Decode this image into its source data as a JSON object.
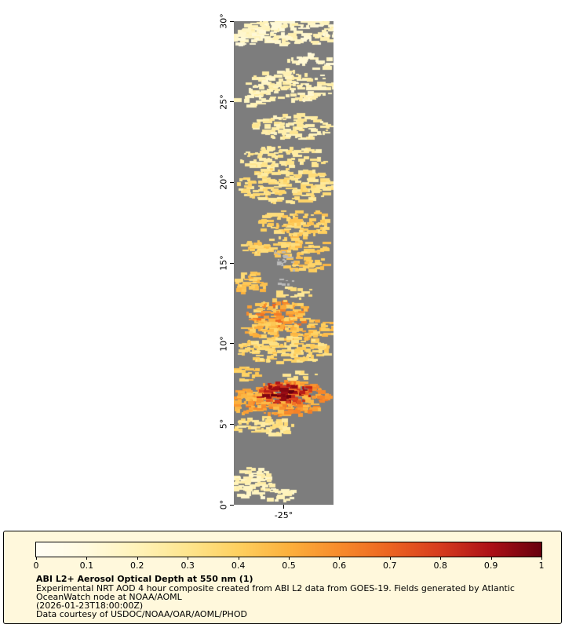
{
  "chart_data": {
    "type": "heatmap",
    "title": "ABI L2+ Aerosol Optical Depth at 550 nm (1)",
    "value_label": "Aerosol Optical Depth at 550 nm",
    "lat_range": [
      0,
      30
    ],
    "lon_range": [
      -28.1,
      -21.9
    ],
    "y_ticks": [
      {
        "value": 0,
        "label": "0°"
      },
      {
        "value": 5,
        "label": "5°"
      },
      {
        "value": 10,
        "label": "10°"
      },
      {
        "value": 15,
        "label": "15°"
      },
      {
        "value": 20,
        "label": "20°"
      },
      {
        "value": 25,
        "label": "25°"
      },
      {
        "value": 30,
        "label": "30°"
      }
    ],
    "x_ticks": [
      {
        "value": -25,
        "label": "-25°"
      }
    ],
    "no_data_color": "#7d7d7d",
    "cloud_color": "#b9b9b9",
    "seed": 7,
    "colormap": {
      "range": [
        0,
        1
      ],
      "stops": [
        {
          "v": 0.0,
          "c": "#fffdf5"
        },
        {
          "v": 0.1,
          "c": "#fffadf"
        },
        {
          "v": 0.2,
          "c": "#fff3b9"
        },
        {
          "v": 0.3,
          "c": "#fee58d"
        },
        {
          "v": 0.4,
          "c": "#fed05f"
        },
        {
          "v": 0.5,
          "c": "#fcb03c"
        },
        {
          "v": 0.6,
          "c": "#f78b2b"
        },
        {
          "v": 0.7,
          "c": "#ec6420"
        },
        {
          "v": 0.8,
          "c": "#d63b1e"
        },
        {
          "v": 0.9,
          "c": "#ac1016"
        },
        {
          "v": 1.0,
          "c": "#67000d"
        }
      ]
    },
    "features": [
      {
        "lat": 29.35,
        "lon": -24.4,
        "rlat": 0.85,
        "rlon": 3.2,
        "aod": 0.17,
        "density": 0.9,
        "noise": 0.06
      },
      {
        "lat": 29.0,
        "lon": -27.4,
        "rlat": 0.5,
        "rlon": 0.9,
        "aod": 0.15,
        "density": 0.7,
        "noise": 0.05
      },
      {
        "lat": 27.5,
        "lon": -23.2,
        "rlat": 0.5,
        "rlon": 1.5,
        "aod": 0.16,
        "density": 0.45,
        "noise": 0.05
      },
      {
        "lat": 26.0,
        "lon": -24.5,
        "rlat": 1.0,
        "rlon": 2.8,
        "aod": 0.2,
        "density": 0.75,
        "noise": 0.06
      },
      {
        "lat": 25.1,
        "lon": -26.9,
        "rlat": 0.4,
        "rlon": 1.0,
        "aod": 0.2,
        "density": 0.5,
        "noise": 0.05
      },
      {
        "lat": 23.4,
        "lon": -24.3,
        "rlat": 0.8,
        "rlon": 2.5,
        "aod": 0.24,
        "density": 0.7,
        "noise": 0.06
      },
      {
        "lat": 21.5,
        "lon": -25.0,
        "rlat": 0.7,
        "rlon": 2.8,
        "aod": 0.27,
        "density": 0.6,
        "noise": 0.06
      },
      {
        "lat": 19.8,
        "lon": -24.8,
        "rlat": 1.1,
        "rlon": 3.0,
        "aod": 0.32,
        "density": 0.8,
        "noise": 0.07
      },
      {
        "lat": 17.5,
        "lon": -24.2,
        "rlat": 0.8,
        "rlon": 2.4,
        "aod": 0.38,
        "density": 0.7,
        "noise": 0.07
      },
      {
        "lat": 16.0,
        "lon": -24.8,
        "rlat": 0.6,
        "rlon": 2.8,
        "aod": 0.4,
        "density": 0.7,
        "noise": 0.07
      },
      {
        "lat": 15.0,
        "lon": -23.6,
        "rlat": 0.5,
        "rlon": 1.5,
        "aod": 0.42,
        "density": 0.6,
        "noise": 0.07
      },
      {
        "lat": 13.7,
        "lon": -27.1,
        "rlat": 0.7,
        "rlon": 1.0,
        "aod": 0.42,
        "density": 0.85,
        "noise": 0.08
      },
      {
        "lat": 13.2,
        "lon": -24.2,
        "rlat": 0.4,
        "rlon": 1.2,
        "aod": 0.3,
        "density": 0.4,
        "noise": 0.06
      },
      {
        "lat": 11.8,
        "lon": -25.4,
        "rlat": 0.9,
        "rlon": 2.0,
        "aod": 0.52,
        "density": 0.85,
        "noise": 0.18
      },
      {
        "lat": 10.9,
        "lon": -24.4,
        "rlat": 0.7,
        "rlon": 3.0,
        "aod": 0.45,
        "density": 0.85,
        "noise": 0.08
      },
      {
        "lat": 9.6,
        "lon": -24.9,
        "rlat": 0.8,
        "rlon": 3.0,
        "aod": 0.36,
        "density": 0.8,
        "noise": 0.07
      },
      {
        "lat": 8.1,
        "lon": -27.3,
        "rlat": 0.5,
        "rlon": 0.8,
        "aod": 0.4,
        "density": 0.6,
        "noise": 0.07
      },
      {
        "lat": 8.0,
        "lon": -23.8,
        "rlat": 0.3,
        "rlon": 1.1,
        "aod": 0.3,
        "density": 0.35,
        "noise": 0.06
      },
      {
        "lat": 6.6,
        "lon": -24.8,
        "rlat": 1.1,
        "rlon": 2.7,
        "aod": 0.55,
        "density": 0.95,
        "noise": 0.1
      },
      {
        "lat": 6.9,
        "lon": -24.9,
        "rlat": 0.7,
        "rlon": 1.8,
        "aod": 0.8,
        "density": 0.9,
        "noise": 0.15
      },
      {
        "lat": 7.0,
        "lon": -25.3,
        "rlat": 0.4,
        "rlon": 1.1,
        "aod": 0.95,
        "density": 0.55,
        "noise": 0.08
      },
      {
        "lat": 6.4,
        "lon": -27.3,
        "rlat": 0.8,
        "rlon": 0.9,
        "aod": 0.5,
        "density": 0.8,
        "noise": 0.08
      },
      {
        "lat": 4.9,
        "lon": -26.2,
        "rlat": 0.6,
        "rlon": 1.9,
        "aod": 0.3,
        "density": 0.7,
        "noise": 0.06
      },
      {
        "lat": 1.3,
        "lon": -26.9,
        "rlat": 1.0,
        "rlon": 1.2,
        "aod": 0.2,
        "density": 0.8,
        "noise": 0.05
      },
      {
        "lat": 0.6,
        "lon": -25.4,
        "rlat": 0.5,
        "rlon": 1.2,
        "aod": 0.17,
        "density": 0.5,
        "noise": 0.05
      }
    ],
    "clouds": [
      {
        "lat": 15.4,
        "lon": -25.1,
        "rlat": 0.55,
        "rlon": 0.9,
        "density": 0.4
      },
      {
        "lat": 14.8,
        "lon": -24.6,
        "rlat": 0.3,
        "rlon": 0.6,
        "density": 0.35
      },
      {
        "lat": 13.8,
        "lon": -24.9,
        "rlat": 0.3,
        "rlon": 0.7,
        "density": 0.35
      }
    ]
  },
  "legend": {
    "background": "#fff8dc",
    "ticks": [
      {
        "v": 0.0,
        "label": "0"
      },
      {
        "v": 0.1,
        "label": "0.1"
      },
      {
        "v": 0.2,
        "label": "0.2"
      },
      {
        "v": 0.3,
        "label": "0.3"
      },
      {
        "v": 0.4,
        "label": "0.4"
      },
      {
        "v": 0.5,
        "label": "0.5"
      },
      {
        "v": 0.6,
        "label": "0.6"
      },
      {
        "v": 0.7,
        "label": "0.7"
      },
      {
        "v": 0.8,
        "label": "0.8"
      },
      {
        "v": 0.9,
        "label": "0.9"
      },
      {
        "v": 1.0,
        "label": "1"
      }
    ],
    "lines": [
      "Experimental NRT AOD 4 hour composite created from ABI L2 data from GOES-19. Fields generated by Atlantic",
      "OceanWatch node at NOAA/AOML",
      "(2026-01-23T18:00:00Z)",
      "Data courtesy of USDOC/NOAA/OAR/AOML/PHOD"
    ]
  }
}
